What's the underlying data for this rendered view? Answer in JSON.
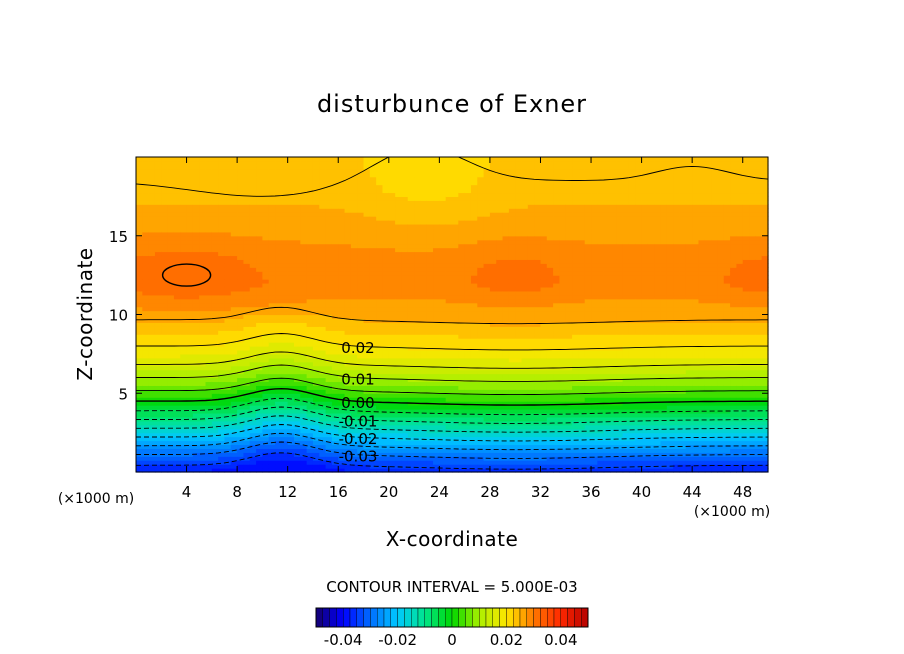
{
  "chart_data": {
    "type": "contour",
    "title": "disturbunce of Exner",
    "xlabel": "X-coordinate",
    "ylabel": "Z-coordinate",
    "x_unit": "(×1000 m)",
    "x_unit_right": "(×1000 m)",
    "xlim": [
      0,
      50
    ],
    "ylim": [
      0,
      20
    ],
    "x_ticks": [
      4,
      8,
      12,
      16,
      20,
      24,
      28,
      32,
      36,
      40,
      44,
      48
    ],
    "y_ticks": [
      5,
      10,
      15
    ],
    "contour_interval_text": "CONTOUR INTERVAL = 5.000E-03",
    "contour_labels": [
      "0.02",
      "0.01",
      "0.00",
      "-0.01",
      "-0.02",
      "-0.03"
    ],
    "colorbar": {
      "min": -0.05,
      "max": 0.05,
      "ticks": [
        "-0.04",
        "-0.02",
        "0",
        "0.02",
        "0.04"
      ],
      "tick_values": [
        -0.04,
        -0.02,
        0,
        0.02,
        0.04
      ]
    },
    "field_profile": {
      "z": [
        0,
        1,
        2,
        3,
        4,
        5,
        6,
        7,
        8,
        9,
        10,
        12,
        14,
        16,
        18,
        20
      ],
      "values": [
        -0.038,
        -0.031,
        -0.022,
        -0.013,
        -0.004,
        0.004,
        0.01,
        0.016,
        0.02,
        0.023,
        0.026,
        0.029,
        0.028,
        0.026,
        0.024,
        0.023
      ]
    },
    "colors": {
      "low": "#0000ff",
      "mid": "#00e000",
      "high": "#ff5000"
    }
  }
}
